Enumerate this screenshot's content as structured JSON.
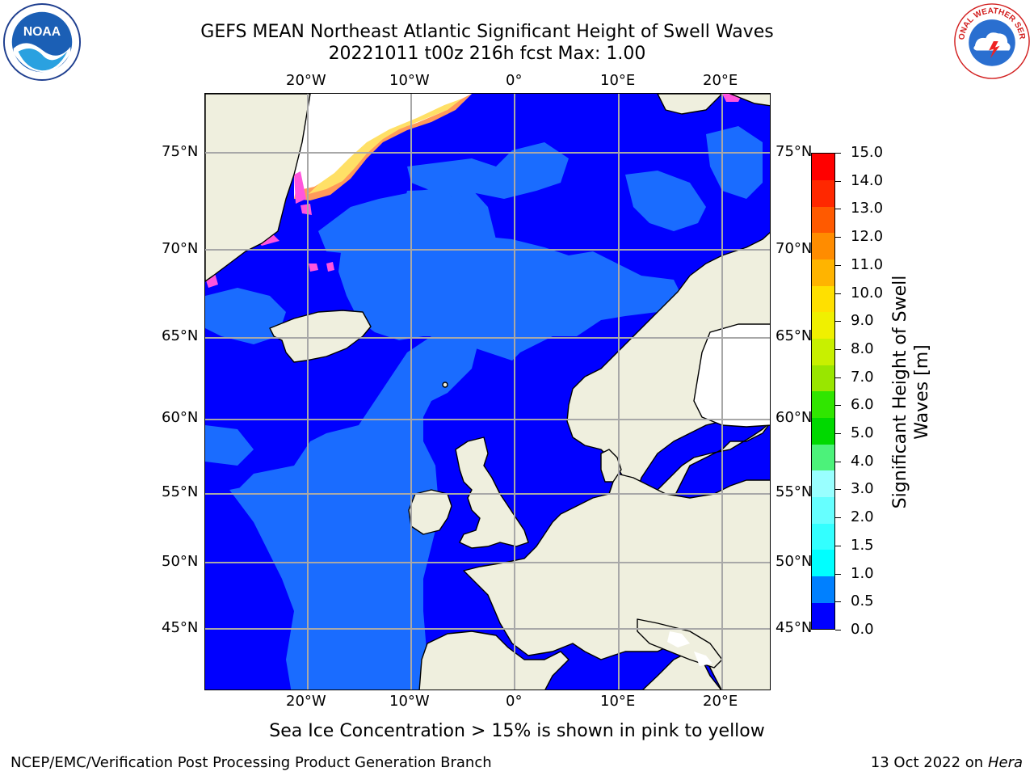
{
  "title": {
    "line1": "GEFS MEAN Northeast Atlantic Significant Height of Swell Waves",
    "line2": "20221011 t00z 216h fcst   Max: 1.00"
  },
  "axes": {
    "top_lon": [
      "20°W",
      "10°W",
      "0°",
      "10°E",
      "20°E"
    ],
    "bottom_lon": [
      "20°W",
      "10°W",
      "0°",
      "10°E",
      "20°E"
    ],
    "lat": [
      "75°N",
      "70°N",
      "65°N",
      "60°N",
      "55°N",
      "50°N",
      "45°N"
    ]
  },
  "colorbar": {
    "title": "Significant Height of Swell Waves [m]",
    "labels": [
      "15.0",
      "14.0",
      "13.0",
      "12.0",
      "11.0",
      "10.0",
      "9.0",
      "8.0",
      "7.0",
      "6.0",
      "5.0",
      "4.0",
      "3.0",
      "2.0",
      "1.5",
      "1.0",
      "0.5",
      "0.0"
    ],
    "colors_bottom_to_top": [
      "#0000ff",
      "#0080ff",
      "#00ffff",
      "#33ffff",
      "#66ffff",
      "#99ffff",
      "#4cf27a",
      "#00d900",
      "#30e600",
      "#99e600",
      "#c8f000",
      "#f0f000",
      "#ffe000",
      "#ffb400",
      "#ff8c00",
      "#ff5a00",
      "#ff2800",
      "#ff0000"
    ]
  },
  "colors": {
    "land": "#efefde",
    "ocean_low": "#0000ff",
    "ocean_mid": "#1a6cff",
    "ice_white": "#ffffff",
    "ice_pink": "#ff55dd",
    "ice_yellow": "#ffe066",
    "grid": "#a8a8a8"
  },
  "note": "Sea Ice Concentration > 15% is shown in pink to yellow",
  "footer": {
    "left": "NCEP/EMC/Verification Post Processing Product Generation Branch",
    "right_prefix": "13 Oct 2022 on ",
    "right_host": "Hera"
  },
  "logos": {
    "noaa_text": "NOAA",
    "nws_text": "NATIONAL WEATHER SERVICE"
  }
}
